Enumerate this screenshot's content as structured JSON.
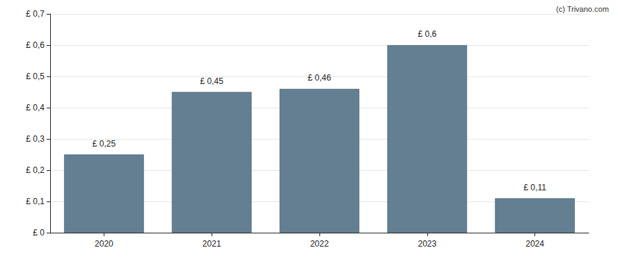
{
  "chart_data": {
    "type": "bar",
    "annotation": "(c) Trivano.com",
    "categories": [
      "2020",
      "2021",
      "2022",
      "2023",
      "2024"
    ],
    "values": [
      0.25,
      0.45,
      0.46,
      0.6,
      0.11
    ],
    "value_labels": [
      "£ 0,25",
      "£ 0,45",
      "£ 0,46",
      "£ 0,6",
      "£ 0,11"
    ],
    "data_labels": true,
    "color": "#647f92",
    "ylim": [
      0,
      0.7
    ],
    "yticks": [
      {
        "value": 0,
        "label": "£ 0"
      },
      {
        "value": 0.1,
        "label": "£ 0,1"
      },
      {
        "value": 0.2,
        "label": "£ 0,2"
      },
      {
        "value": 0.3,
        "label": "£ 0,3"
      },
      {
        "value": 0.4,
        "label": "£ 0,4"
      },
      {
        "value": 0.5,
        "label": "£ 0,5"
      },
      {
        "value": 0.6,
        "label": "£ 0,6"
      },
      {
        "value": 0.7,
        "label": "£ 0,7"
      }
    ],
    "grid": true
  }
}
